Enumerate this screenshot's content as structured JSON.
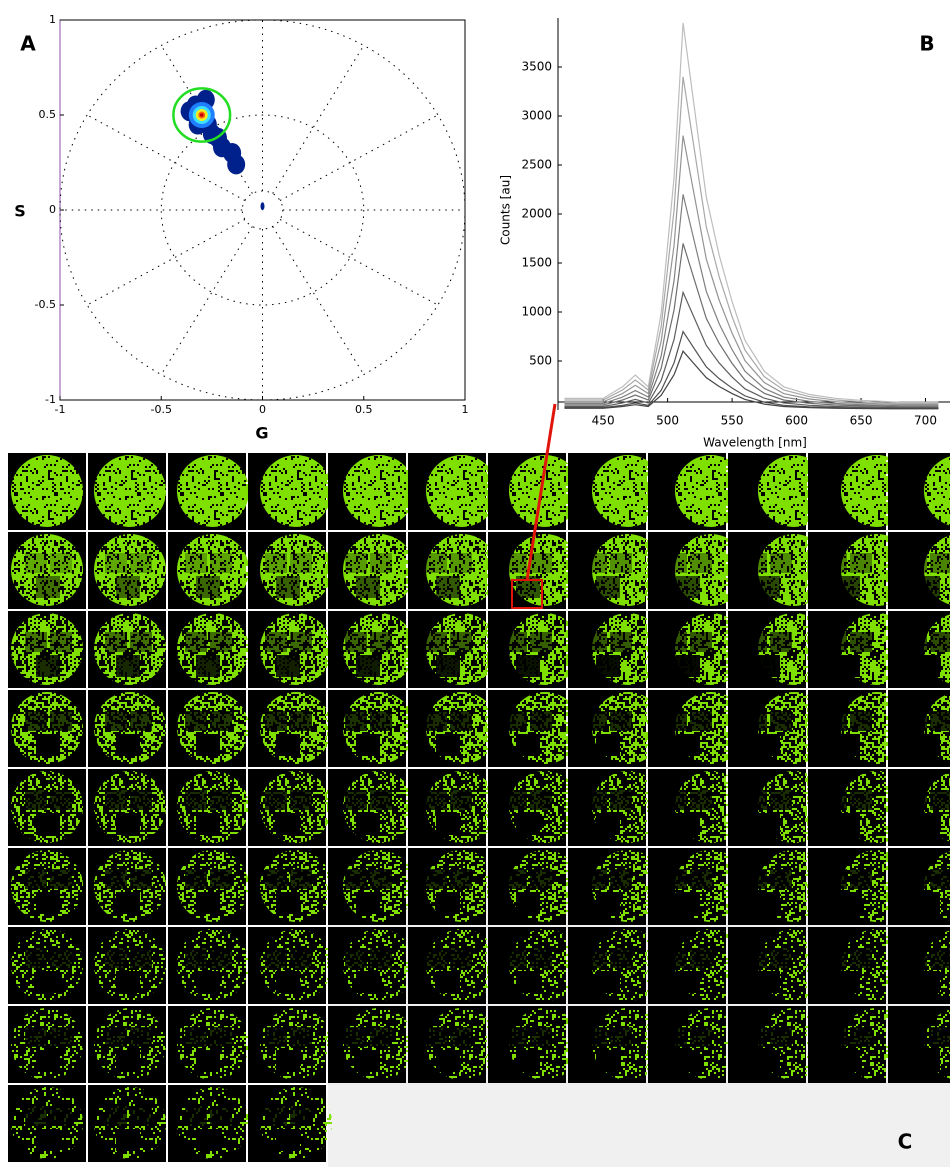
{
  "chart_data": [
    {
      "type": "phasor",
      "label": "A",
      "xlabel": "G",
      "ylabel": "S",
      "xlim": [
        -1,
        1
      ],
      "ylim": [
        -1,
        1
      ],
      "xticks": [
        -1,
        -0.5,
        0,
        0.5,
        1
      ],
      "yticks": [
        -1,
        -0.5,
        0,
        0.5,
        1
      ],
      "circles": [
        1,
        0.5,
        0.1
      ],
      "spoke_angle": 30,
      "x": [
        -0.33,
        -0.3,
        -0.36,
        -0.27,
        -0.25,
        -0.22,
        -0.2,
        -0.15,
        -0.13,
        -0.28,
        -0.32,
        0
      ],
      "y": [
        0.55,
        0.5,
        0.52,
        0.45,
        0.4,
        0.38,
        0.33,
        0.3,
        0.24,
        0.58,
        0.45,
        0.02
      ],
      "color": "#00208c",
      "selection": {
        "x": -0.3,
        "y": 0.5,
        "r": 0.14,
        "color": "#22dd22"
      }
    },
    {
      "type": "line",
      "label": "B",
      "xlabel": "Wavelength [nm]",
      "ylabel": "Counts [au]",
      "xlim": [
        415,
        719
      ],
      "ylim": [
        0,
        4000
      ],
      "xticks": [
        450,
        500,
        550,
        600,
        650,
        700
      ],
      "yticks": [
        500,
        1000,
        1500,
        2000,
        2500,
        3000,
        3500
      ],
      "x": [
        420,
        450,
        465,
        475,
        485,
        495,
        505,
        512,
        520,
        530,
        540,
        550,
        560,
        575,
        590,
        610,
        630,
        650,
        680,
        710
      ],
      "series": [
        {
          "color": "#bdbdbd",
          "values": [
            119,
            119,
            237,
            356,
            237,
            988,
            2370,
            3950,
            3160,
            2173,
            1580,
            1106,
            711,
            395,
            237,
            158,
            119,
            99,
            79,
            79
          ]
        },
        {
          "color": "#a8a8a8",
          "values": [
            102,
            102,
            204,
            306,
            204,
            850,
            2040,
            3400,
            2720,
            1870,
            1360,
            952,
            612,
            340,
            204,
            136,
            102,
            85,
            68,
            68
          ]
        },
        {
          "color": "#949494",
          "values": [
            84,
            84,
            168,
            252,
            168,
            700,
            1680,
            2800,
            2240,
            1540,
            1120,
            784,
            504,
            280,
            168,
            112,
            84,
            70,
            56,
            56
          ]
        },
        {
          "color": "#808080",
          "values": [
            66,
            66,
            132,
            198,
            132,
            550,
            1320,
            2200,
            1760,
            1210,
            880,
            616,
            396,
            220,
            132,
            88,
            66,
            55,
            44,
            44
          ]
        },
        {
          "color": "#6e6e6e",
          "values": [
            51,
            51,
            102,
            153,
            102,
            425,
            1020,
            1700,
            1360,
            935,
            680,
            476,
            306,
            170,
            102,
            68,
            51,
            43,
            34,
            34
          ]
        },
        {
          "color": "#5e5e5e",
          "values": [
            36,
            36,
            72,
            108,
            72,
            300,
            720,
            1200,
            960,
            660,
            480,
            336,
            216,
            120,
            72,
            48,
            36,
            30,
            24,
            24
          ]
        },
        {
          "color": "#505050",
          "values": [
            24,
            24,
            48,
            72,
            48,
            200,
            480,
            800,
            640,
            440,
            320,
            224,
            144,
            80,
            48,
            32,
            24,
            20,
            16,
            16
          ]
        },
        {
          "color": "#444444",
          "values": [
            18,
            18,
            36,
            54,
            36,
            150,
            360,
            600,
            480,
            330,
            240,
            168,
            108,
            60,
            36,
            24,
            18,
            15,
            12,
            12
          ]
        }
      ]
    },
    {
      "type": "image-grid",
      "label": "C",
      "color": "#7fe000",
      "highlight_color": "#e0140a"
    }
  ]
}
